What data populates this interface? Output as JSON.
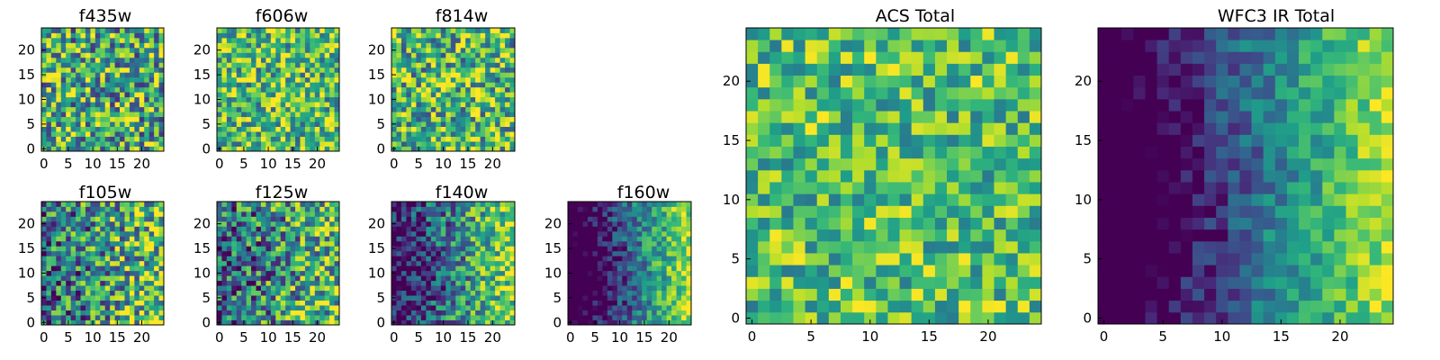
{
  "colormap": "viridis",
  "chart_data": [
    {
      "type": "heatmap",
      "title": "f435w",
      "grid_size": 25,
      "xticks": [
        "0",
        "5",
        "10",
        "15",
        "20"
      ],
      "yticks": [
        "0",
        "5",
        "10",
        "15",
        "20"
      ],
      "gradient": "none",
      "bias": 0.6,
      "noise": 0.45
    },
    {
      "type": "heatmap",
      "title": "f606w",
      "grid_size": 25,
      "xticks": [
        "0",
        "5",
        "10",
        "15",
        "20"
      ],
      "yticks": [
        "0",
        "5",
        "10",
        "15",
        "20"
      ],
      "gradient": "none",
      "bias": 0.68,
      "noise": 0.38
    },
    {
      "type": "heatmap",
      "title": "f814w",
      "grid_size": 25,
      "xticks": [
        "0",
        "5",
        "10",
        "15",
        "20"
      ],
      "yticks": [
        "0",
        "5",
        "10",
        "15",
        "20"
      ],
      "gradient": "none",
      "bias": 0.66,
      "noise": 0.42
    },
    {
      "type": "heatmap",
      "title": "f105w",
      "grid_size": 25,
      "xticks": [
        "0",
        "5",
        "10",
        "15",
        "20"
      ],
      "yticks": [
        "0",
        "5",
        "10",
        "15",
        "20"
      ],
      "gradient": "weak",
      "bias": 0.55,
      "noise": 0.45
    },
    {
      "type": "heatmap",
      "title": "f125w",
      "grid_size": 25,
      "xticks": [
        "0",
        "5",
        "10",
        "15",
        "20"
      ],
      "yticks": [
        "0",
        "5",
        "10",
        "15",
        "20"
      ],
      "gradient": "weak",
      "bias": 0.52,
      "noise": 0.45
    },
    {
      "type": "heatmap",
      "title": "f140w",
      "grid_size": 25,
      "xticks": [
        "0",
        "5",
        "10",
        "15",
        "20"
      ],
      "yticks": [
        "0",
        "5",
        "10",
        "15",
        "20"
      ],
      "gradient": "medium",
      "bias": 0.45,
      "noise": 0.35
    },
    {
      "type": "heatmap",
      "title": "f160w",
      "grid_size": 25,
      "xticks": [
        "0",
        "5",
        "10",
        "15",
        "20"
      ],
      "yticks": [
        "0",
        "5",
        "10",
        "15",
        "20"
      ],
      "gradient": "strong",
      "bias": 0.35,
      "noise": 0.25
    },
    {
      "type": "heatmap",
      "title": "ACS Total",
      "grid_size": 25,
      "xticks": [
        "0",
        "5",
        "10",
        "15",
        "20"
      ],
      "yticks": [
        "0",
        "5",
        "10",
        "15",
        "20"
      ],
      "gradient": "none",
      "bias": 0.7,
      "noise": 0.3
    },
    {
      "type": "heatmap",
      "title": "WFC3 IR Total",
      "grid_size": 25,
      "xticks": [
        "0",
        "5",
        "10",
        "15",
        "20"
      ],
      "yticks": [
        "0",
        "5",
        "10",
        "15",
        "20"
      ],
      "gradient": "strong",
      "bias": 0.35,
      "noise": 0.18
    }
  ]
}
